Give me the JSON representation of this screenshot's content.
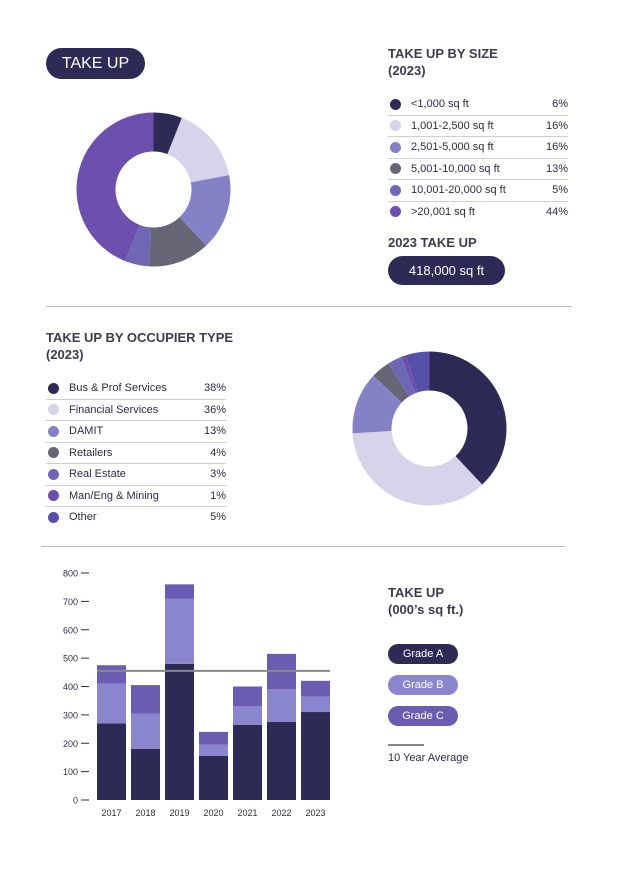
{
  "title_pill": "TAKE UP",
  "size_section": {
    "heading_line1": "TAKE UP BY SIZE",
    "heading_line2": "(2023)",
    "total_heading": "2023 TAKE UP",
    "total_value": "418,000 sq ft"
  },
  "occupier_section": {
    "heading_line1": "TAKE UP BY OCCUPIER TYPE",
    "heading_line2": "(2023)"
  },
  "bar_section": {
    "heading_line1": "TAKE UP",
    "heading_line2": "(000’s sq ft.)",
    "average_label": "10 Year Average"
  },
  "colors": {
    "navy": "#2d2a55",
    "lavender": "#d6d3ea",
    "periwinkle": "#8581c6",
    "slate": "#676677",
    "medium_purple": "#6e67b5",
    "violet": "#6d4fad",
    "indigo": "#5650a8",
    "grade_a": "#2d2a55",
    "grade_b": "#8a86cd",
    "grade_c": "#6b5cb2",
    "average_line": "#888888"
  },
  "chart_data": [
    {
      "type": "pie",
      "title": "TAKE UP BY SIZE (2023)",
      "categories": [
        "<1,000 sq ft",
        "1,001-2,500 sq ft",
        "2,501-5,000 sq ft",
        "5,001-10,000 sq ft",
        "10,001-20,000 sq ft",
        ">20,001 sq ft"
      ],
      "values": [
        6,
        16,
        16,
        13,
        5,
        44
      ],
      "labels": [
        "6%",
        "16%",
        "16%",
        "13%",
        "5%",
        "44%"
      ],
      "colors": [
        "#2d2a55",
        "#d6d3ea",
        "#8581c6",
        "#676677",
        "#6e67b5",
        "#6d4fad"
      ],
      "legend": "right"
    },
    {
      "type": "pie",
      "title": "TAKE UP BY OCCUPIER TYPE (2023)",
      "categories": [
        "Bus & Prof Services",
        "Financial Services",
        "DAMIT",
        "Retailers",
        "Real Estate",
        "Man/Eng & Mining",
        "Other"
      ],
      "values": [
        38,
        36,
        13,
        4,
        3,
        1,
        5
      ],
      "labels": [
        "38%",
        "36%",
        "13%",
        "4%",
        "3%",
        "1%",
        "5%"
      ],
      "colors": [
        "#2d2a55",
        "#d6d3ea",
        "#8581c6",
        "#676677",
        "#6e67b5",
        "#6d4fad",
        "#5650a8"
      ],
      "legend": "left"
    },
    {
      "type": "bar",
      "stacked": true,
      "title": "TAKE UP (000’s sq ft.)",
      "categories": [
        "2017",
        "2018",
        "2019",
        "2020",
        "2021",
        "2022",
        "2023"
      ],
      "series": [
        {
          "name": "Grade A",
          "color": "#2d2a55",
          "values": [
            270,
            180,
            480,
            155,
            265,
            275,
            310
          ]
        },
        {
          "name": "Grade B",
          "color": "#8a86cd",
          "values": [
            140,
            125,
            230,
            40,
            65,
            115,
            55
          ]
        },
        {
          "name": "Grade C",
          "color": "#6b5cb2",
          "values": [
            65,
            100,
            50,
            45,
            70,
            125,
            55
          ]
        }
      ],
      "reference_line": {
        "name": "10 Year Average",
        "value": 455
      },
      "ylim": [
        0,
        800
      ],
      "yticks": [
        "0",
        "100",
        "200",
        "300",
        "400",
        "500",
        "600",
        "700",
        "800"
      ],
      "legend": "right"
    }
  ]
}
